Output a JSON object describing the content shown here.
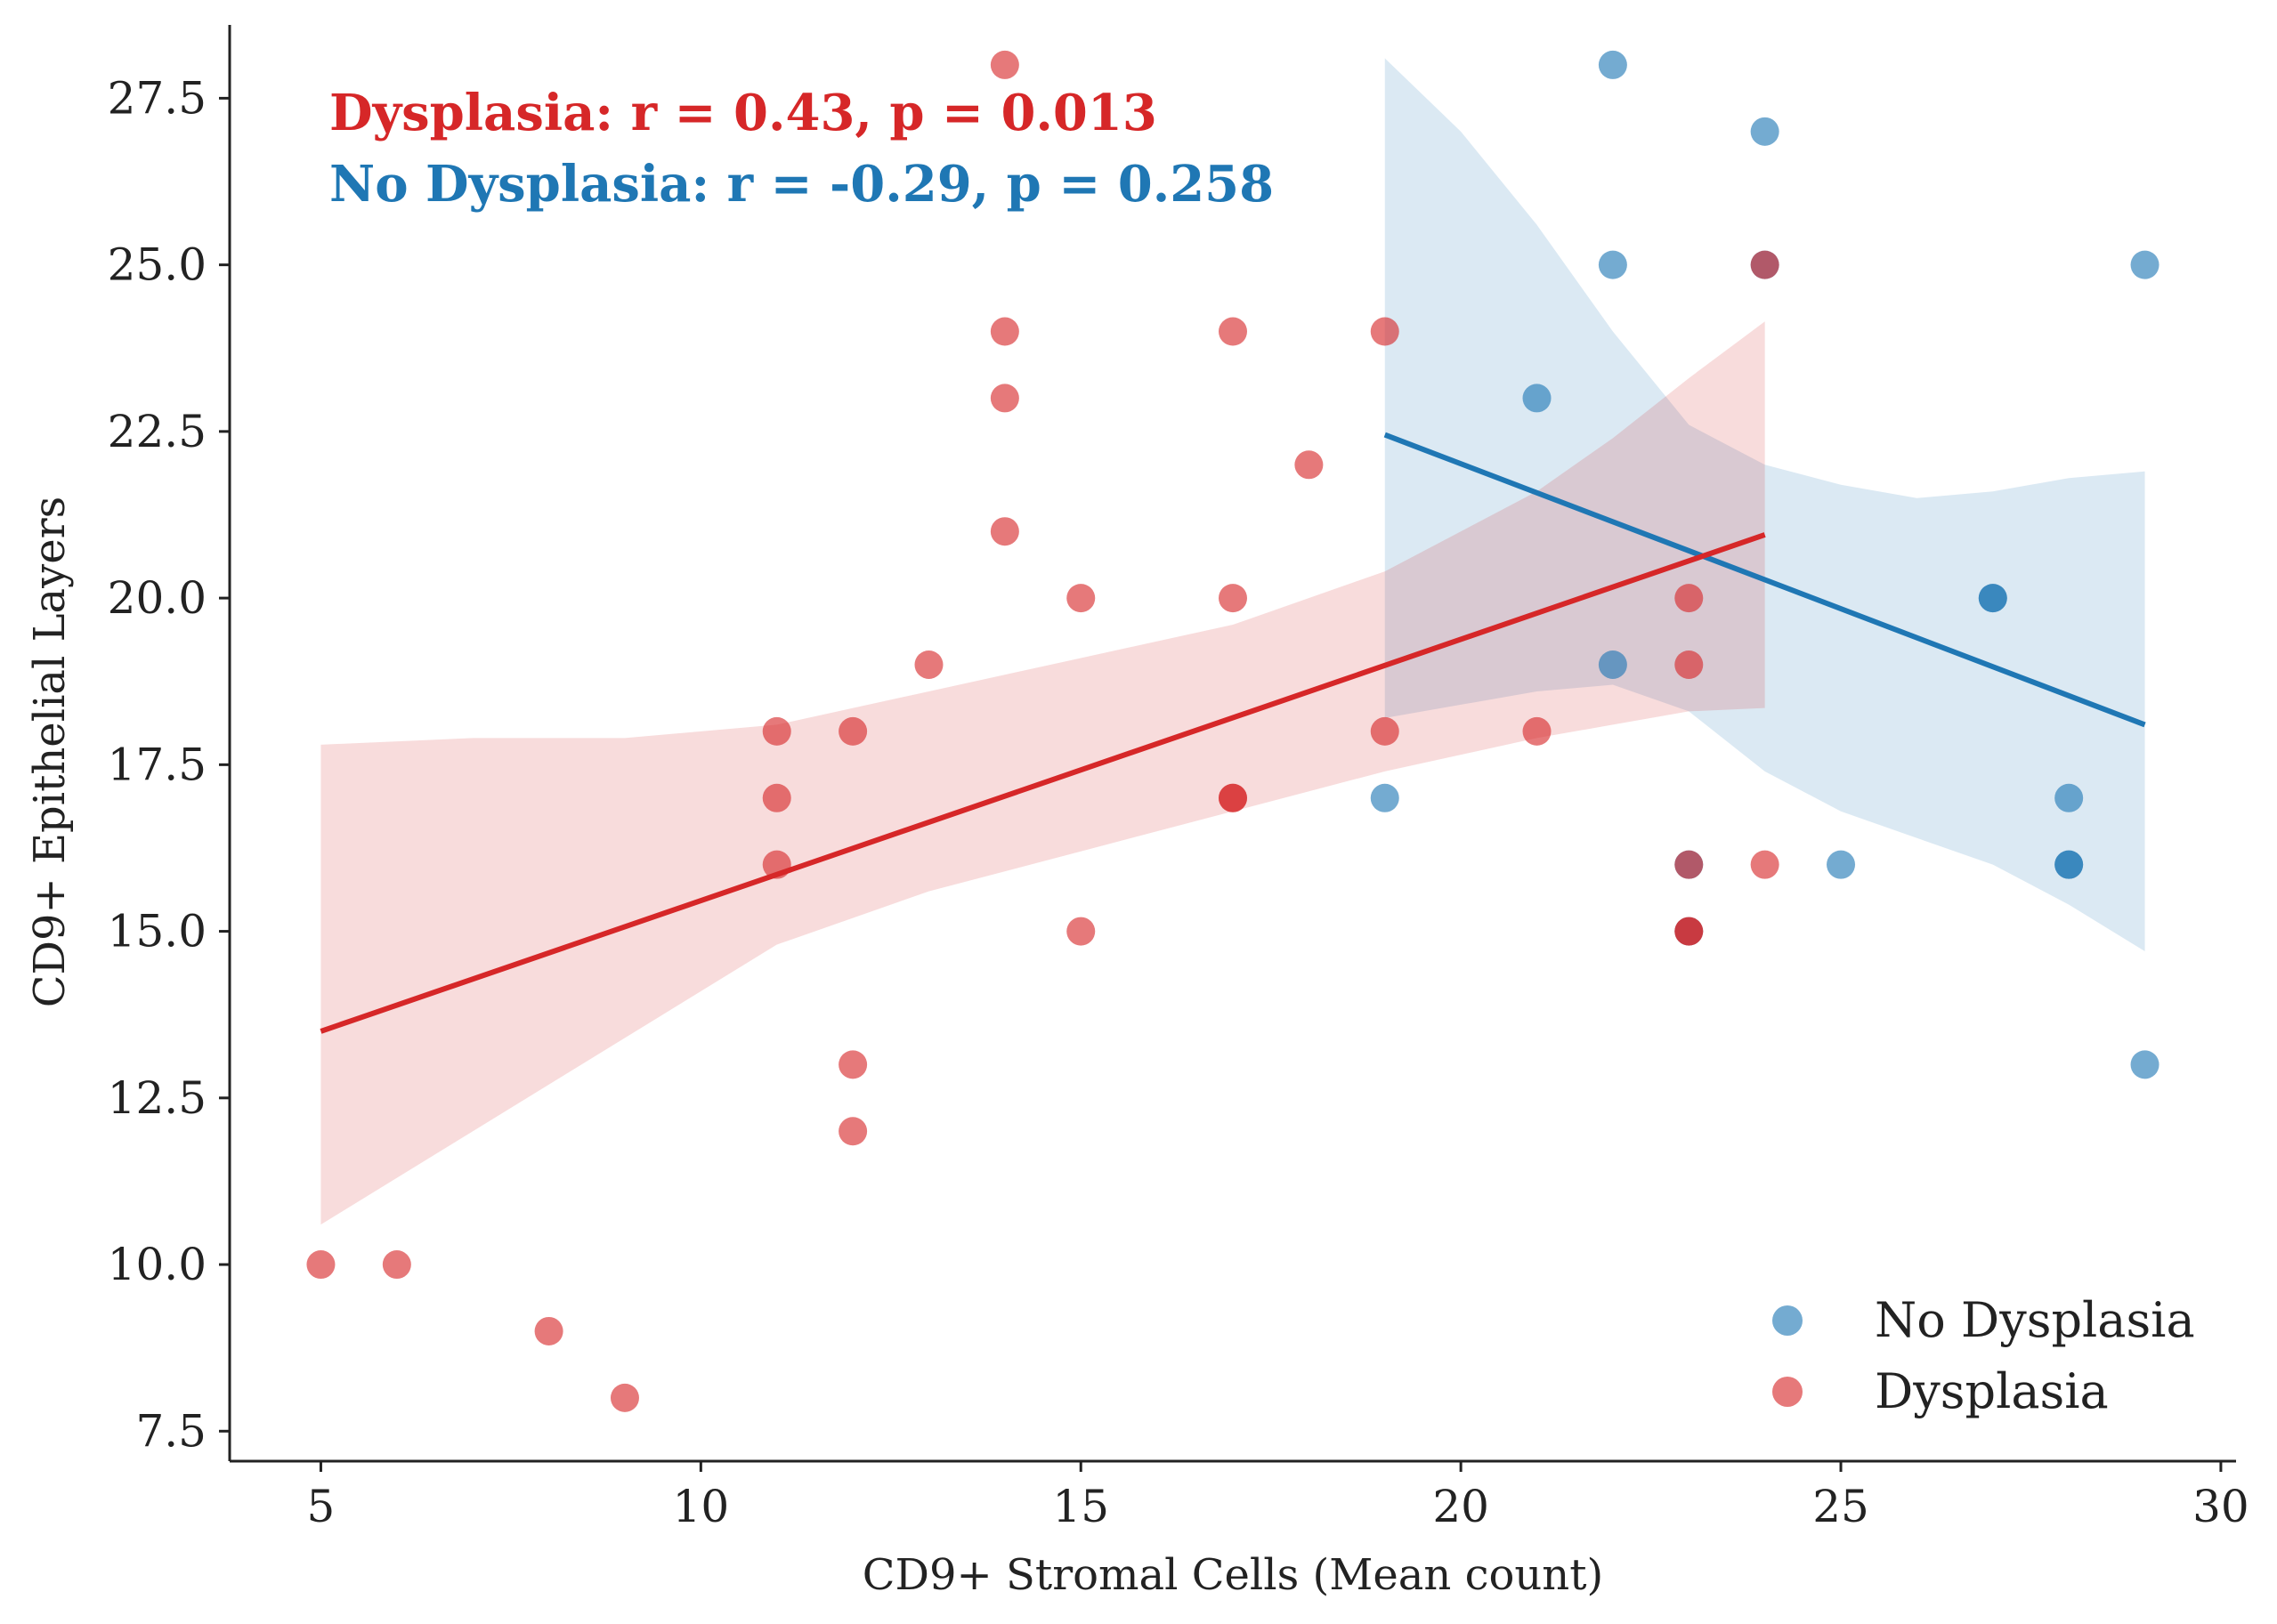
{
  "chart_data": {
    "type": "scatter",
    "xlabel": "CD9+ Stromal Cells (Mean count)",
    "ylabel": "CD9+ Epithelial Layers",
    "xlim": [
      3.8,
      30.2
    ],
    "ylim": [
      7.05,
      28.6
    ],
    "xticks": [
      5,
      10,
      15,
      20,
      25,
      30
    ],
    "yticks": [
      7.5,
      10.0,
      12.5,
      15.0,
      17.5,
      20.0,
      22.5,
      25.0,
      27.5
    ],
    "grid": false,
    "legend_position": "bottom-right",
    "colors": {
      "no_dysplasia": "#1f77b4",
      "dysplasia": "#d62728"
    },
    "series": [
      {
        "name": "No Dysplasia",
        "color": "#1f77b4",
        "points": [
          {
            "x": 22,
            "y": 28
          },
          {
            "x": 24,
            "y": 27
          },
          {
            "x": 22,
            "y": 25
          },
          {
            "x": 24,
            "y": 25
          },
          {
            "x": 29,
            "y": 25
          },
          {
            "x": 21,
            "y": 23
          },
          {
            "x": 27,
            "y": 20
          },
          {
            "x": 27,
            "y": 20
          },
          {
            "x": 22,
            "y": 19
          },
          {
            "x": 19,
            "y": 17
          },
          {
            "x": 28,
            "y": 17
          },
          {
            "x": 23,
            "y": 16
          },
          {
            "x": 25,
            "y": 16
          },
          {
            "x": 28,
            "y": 16
          },
          {
            "x": 28,
            "y": 16
          },
          {
            "x": 23,
            "y": 15
          },
          {
            "x": 29,
            "y": 13
          }
        ],
        "regression": {
          "x0": 19,
          "y0": 22.45,
          "x1": 29,
          "y1": 18.1
        },
        "ci_band": [
          {
            "x": 19,
            "upper": 28.1,
            "lower": 18.2
          },
          {
            "x": 20,
            "upper": 27.0,
            "lower": 18.4
          },
          {
            "x": 21,
            "upper": 25.6,
            "lower": 18.6
          },
          {
            "x": 22,
            "upper": 24.0,
            "lower": 18.7
          },
          {
            "x": 23,
            "upper": 22.6,
            "lower": 18.3
          },
          {
            "x": 24,
            "upper": 22.0,
            "lower": 17.4
          },
          {
            "x": 25,
            "upper": 21.7,
            "lower": 16.8
          },
          {
            "x": 26,
            "upper": 21.5,
            "lower": 16.4
          },
          {
            "x": 27,
            "upper": 21.6,
            "lower": 16.0
          },
          {
            "x": 28,
            "upper": 21.8,
            "lower": 15.4
          },
          {
            "x": 29,
            "upper": 21.9,
            "lower": 14.7
          }
        ]
      },
      {
        "name": "Dysplasia",
        "color": "#d62728",
        "points": [
          {
            "x": 14,
            "y": 28
          },
          {
            "x": 14,
            "y": 24
          },
          {
            "x": 17,
            "y": 24
          },
          {
            "x": 19,
            "y": 24
          },
          {
            "x": 14,
            "y": 23
          },
          {
            "x": 18,
            "y": 22
          },
          {
            "x": 14,
            "y": 21
          },
          {
            "x": 15,
            "y": 20
          },
          {
            "x": 17,
            "y": 20
          },
          {
            "x": 23,
            "y": 20
          },
          {
            "x": 13,
            "y": 19
          },
          {
            "x": 23,
            "y": 19
          },
          {
            "x": 11,
            "y": 18
          },
          {
            "x": 12,
            "y": 18
          },
          {
            "x": 19,
            "y": 18
          },
          {
            "x": 21,
            "y": 18
          },
          {
            "x": 11,
            "y": 17
          },
          {
            "x": 17,
            "y": 17
          },
          {
            "x": 17,
            "y": 17
          },
          {
            "x": 11,
            "y": 16
          },
          {
            "x": 23,
            "y": 16
          },
          {
            "x": 24,
            "y": 16
          },
          {
            "x": 15,
            "y": 15
          },
          {
            "x": 23,
            "y": 15
          },
          {
            "x": 23,
            "y": 15
          },
          {
            "x": 12,
            "y": 13
          },
          {
            "x": 12,
            "y": 12
          },
          {
            "x": 5,
            "y": 10
          },
          {
            "x": 6,
            "y": 10
          },
          {
            "x": 8,
            "y": 9
          },
          {
            "x": 9,
            "y": 8
          },
          {
            "x": 24,
            "y": 25
          }
        ],
        "regression": {
          "x0": 5,
          "y0": 13.5,
          "x1": 24,
          "y1": 20.95
        },
        "ci_band": [
          {
            "x": 5,
            "upper": 17.8,
            "lower": 10.6
          },
          {
            "x": 7,
            "upper": 17.9,
            "lower": 12.0
          },
          {
            "x": 9,
            "upper": 17.9,
            "lower": 13.4
          },
          {
            "x": 11,
            "upper": 18.1,
            "lower": 14.8
          },
          {
            "x": 13,
            "upper": 18.6,
            "lower": 15.6
          },
          {
            "x": 15,
            "upper": 19.1,
            "lower": 16.2
          },
          {
            "x": 17,
            "upper": 19.6,
            "lower": 16.8
          },
          {
            "x": 19,
            "upper": 20.4,
            "lower": 17.4
          },
          {
            "x": 21,
            "upper": 21.6,
            "lower": 17.9
          },
          {
            "x": 22,
            "upper": 22.4,
            "lower": 18.1
          },
          {
            "x": 23,
            "upper": 23.3,
            "lower": 18.3
          },
          {
            "x": 24,
            "upper": 24.15,
            "lower": 18.35
          }
        ]
      }
    ],
    "annotations": [
      {
        "text": "Dysplasia: r = 0.43, p = 0.013",
        "color": "#d62728"
      },
      {
        "text": "No Dysplasia: r = -0.29, p = 0.258",
        "color": "#1f77b4"
      }
    ]
  }
}
